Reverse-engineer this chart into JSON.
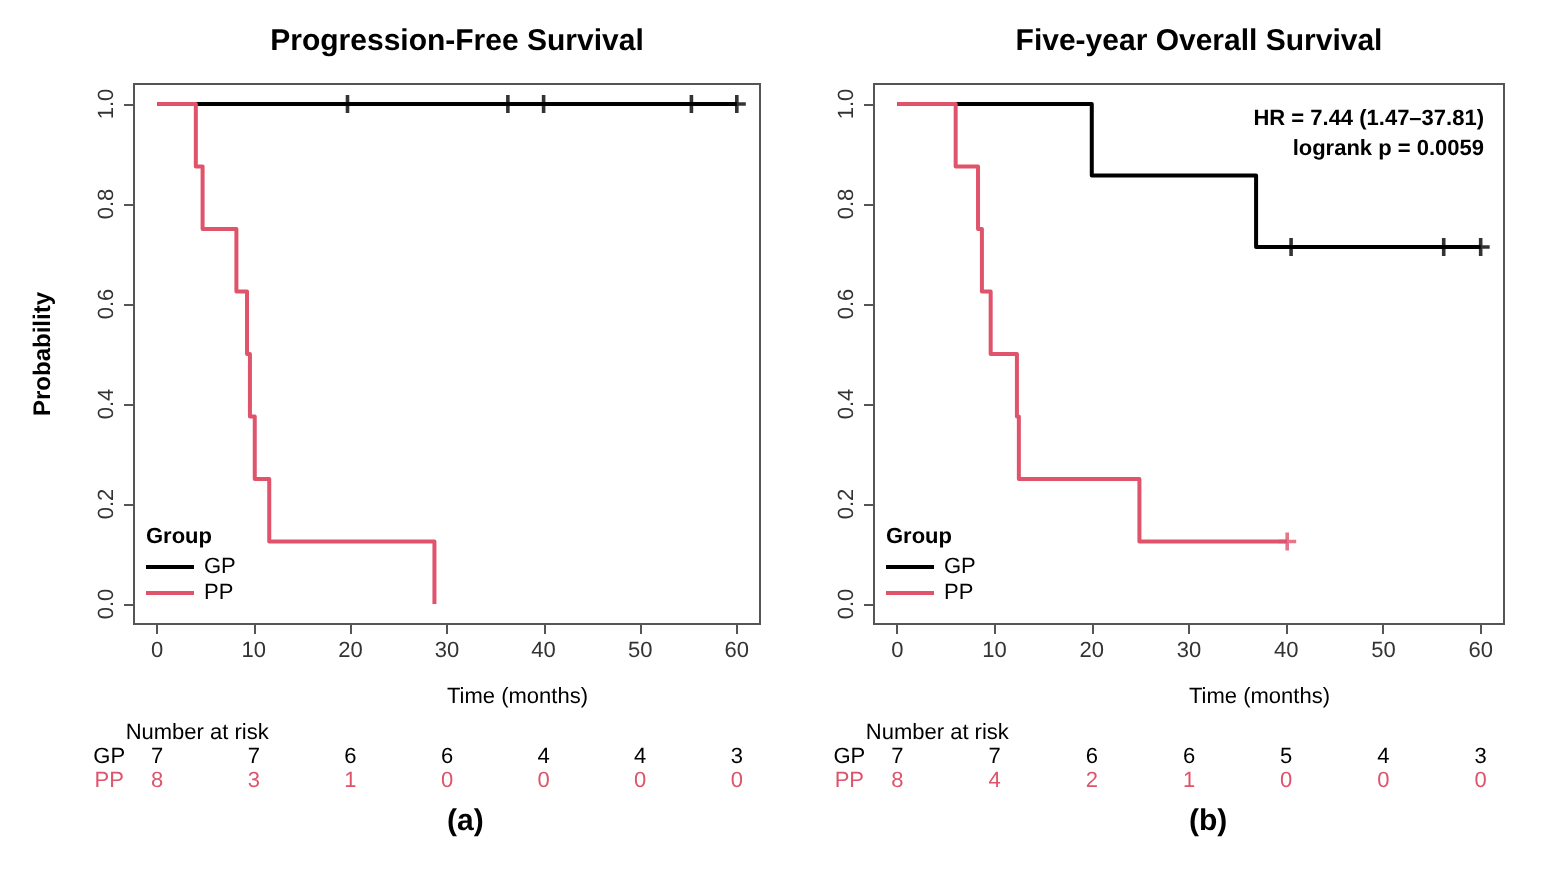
{
  "chart_data": [
    {
      "type": "step",
      "title": "Progression-Free Survival",
      "xlabel": "Time (months)",
      "ylabel": "Probability",
      "legend_title": "Group",
      "legend": "bottom left",
      "grid": false,
      "line_style": "solid",
      "xlim": [
        -2.4,
        62.4
      ],
      "ylim": [
        -0.04,
        1.04
      ],
      "xticks": [
        0,
        10,
        20,
        30,
        40,
        50,
        60
      ],
      "yticks": [
        {
          "value": 0,
          "label": "0.0"
        },
        {
          "value": 0.2,
          "label": "0.2"
        },
        {
          "value": 0.4,
          "label": "0.4"
        },
        {
          "value": 0.6,
          "label": "0.6"
        },
        {
          "value": 0.8,
          "label": "0.8"
        },
        {
          "value": 1,
          "label": "1.0"
        }
      ],
      "series": [
        {
          "name": "GP",
          "color": "#000000",
          "x": [
            0,
            60
          ],
          "values": [
            1,
            1
          ]
        },
        {
          "name": "PP",
          "color": "#df536b",
          "x": [
            0,
            4.0,
            4.7,
            8.2,
            9.3,
            9.6,
            10.1,
            11.6,
            28.7
          ],
          "values": [
            1,
            0.875,
            0.75,
            0.625,
            0.5,
            0.375,
            0.25,
            0.125,
            0
          ]
        },
        {
          "type": "scatter",
          "marker": "cross",
          "color": "#000000",
          "x": [
            19.7,
            36.3,
            40,
            55.3,
            60
          ],
          "values": [
            1,
            1,
            1,
            1,
            1
          ]
        }
      ],
      "annotations": [
        "(a)",
        "Number at risk",
        "GP",
        "7",
        "7",
        "6",
        "6",
        "4",
        "4",
        "3",
        "PP",
        "8",
        "3",
        "1",
        "0",
        "0",
        "0",
        "0"
      ]
    },
    {
      "type": "step",
      "title": "Five-year Overall Survival",
      "xlabel": "Time (months)",
      "legend_title": "Group",
      "legend": "bottom left",
      "grid": false,
      "line_style": "solid",
      "xlim": [
        -2.4,
        62.4
      ],
      "ylim": [
        -0.04,
        1.04
      ],
      "xticks": [
        0,
        10,
        20,
        30,
        40,
        50,
        60
      ],
      "yticks": [
        {
          "value": 0,
          "label": "0.0"
        },
        {
          "value": 0.2,
          "label": "0.2"
        },
        {
          "value": 0.4,
          "label": "0.4"
        },
        {
          "value": 0.6,
          "label": "0.6"
        },
        {
          "value": 0.8,
          "label": "0.8"
        },
        {
          "value": 1,
          "label": "1.0"
        }
      ],
      "series": [
        {
          "name": "GP",
          "color": "#000000",
          "x": [
            0,
            20.0,
            36.9,
            60
          ],
          "values": [
            1,
            0.857,
            0.714,
            0.714
          ]
        },
        {
          "name": "PP",
          "color": "#df536b",
          "x": [
            0,
            6.0,
            8.3,
            8.7,
            9.6,
            12.3,
            12.5,
            24.9,
            40.1
          ],
          "values": [
            1,
            0.875,
            0.75,
            0.625,
            0.5,
            0.375,
            0.25,
            0.125,
            0.125
          ]
        },
        {
          "type": "scatter",
          "marker": "cross",
          "color": "#000000",
          "x": [
            40.5,
            56.2,
            60
          ],
          "values": [
            0.714,
            0.714,
            0.714
          ]
        },
        {
          "type": "scatter",
          "marker": "cross",
          "color": "#df536b",
          "x": [
            40.1
          ],
          "values": [
            0.125
          ]
        }
      ],
      "annotations": [
        "(b)",
        "Number at risk",
        "GP",
        "7",
        "7",
        "6",
        "6",
        "5",
        "4",
        "3",
        "PP",
        "8",
        "4",
        "2",
        "1",
        "0",
        "0",
        "0",
        "HR = 7.44 (1.47–37.81)",
        "logrank p = 0.0059"
      ]
    }
  ]
}
